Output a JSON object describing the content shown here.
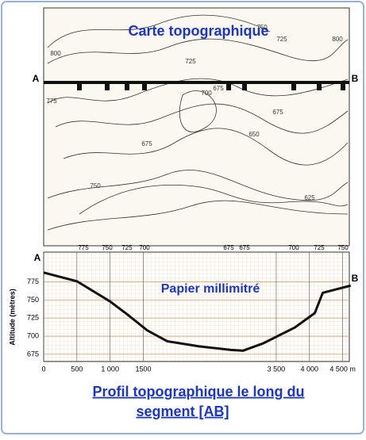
{
  "map": {
    "title": "Carte topographique",
    "point_a": "A",
    "point_b": "B",
    "contour_labels": [
      "800",
      "775",
      "750",
      "725",
      "700",
      "675",
      "675",
      "675",
      "650",
      "625",
      "750",
      "725",
      "800"
    ]
  },
  "chart_data": {
    "type": "line",
    "subtitle": "Papier millimitré",
    "ylabel": "Altitude (mètres)",
    "point_a": "A",
    "point_b": "B",
    "crossing_labels": [
      "775",
      "750",
      "725",
      "700",
      "675",
      "675",
      "700",
      "725",
      "750"
    ],
    "x": [
      0,
      500,
      1000,
      1260,
      1560,
      1860,
      2340,
      2820,
      3000,
      3300,
      3780,
      4080,
      4200,
      4620
    ],
    "series": [
      {
        "color": "#111111",
        "values": [
          788,
          776,
          748,
          730,
          708,
          693,
          686,
          681,
          680,
          690,
          712,
          732,
          760,
          770
        ]
      }
    ],
    "xlim": [
      0,
      4600
    ],
    "ylim": [
      665,
      790
    ],
    "xticks": [
      0,
      500,
      {
        "value": 1000,
        "label": "1 000"
      },
      1500,
      {
        "value": 3500,
        "label": "3 500"
      },
      {
        "value": 4000,
        "label": "4 000"
      },
      {
        "value": 4500,
        "label": "4 500 m"
      }
    ],
    "yticks": [
      675,
      700,
      725,
      750,
      775
    ],
    "grid": true,
    "caption": [
      "Profil topographique le long du",
      "segment [AB]"
    ]
  }
}
